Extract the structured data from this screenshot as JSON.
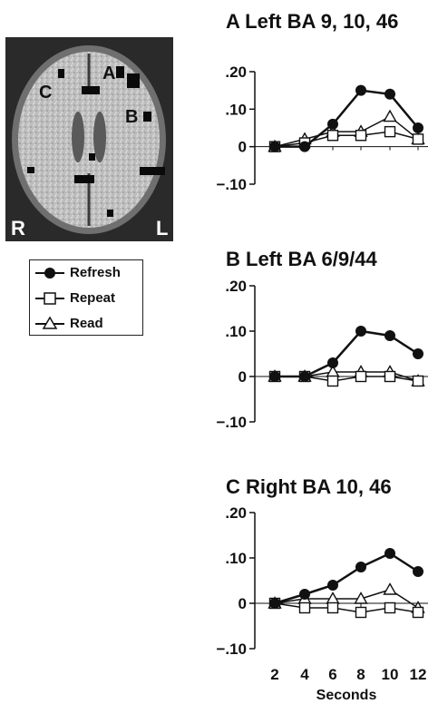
{
  "brain": {
    "letters": [
      "A",
      "B",
      "C"
    ],
    "side_left": "L",
    "side_right": "R",
    "colors": {
      "background": "#2a2a2a",
      "tissue": "#c9c9c9",
      "activation": "#0a0a0a"
    }
  },
  "legend": {
    "items": [
      {
        "label": "Refresh",
        "marker": "filled-circle"
      },
      {
        "label": "Repeat",
        "marker": "open-square"
      },
      {
        "label": "Read",
        "marker": "open-triangle"
      }
    ]
  },
  "chart_data": [
    {
      "type": "line",
      "title": "A  Left BA 9, 10, 46",
      "x": [
        2,
        4,
        6,
        8,
        10,
        12
      ],
      "ylim": [
        -0.1,
        0.2
      ],
      "yticks": [
        ".20",
        ".10",
        "0",
        "−.10"
      ],
      "series": [
        {
          "name": "Refresh",
          "marker": "filled-circle",
          "values": [
            0,
            0,
            0.06,
            0.15,
            0.14,
            0.05
          ]
        },
        {
          "name": "Repeat",
          "marker": "open-square",
          "values": [
            0,
            0.01,
            0.03,
            0.03,
            0.04,
            0.02
          ]
        },
        {
          "name": "Read",
          "marker": "open-triangle",
          "values": [
            0,
            0.02,
            0.04,
            0.04,
            0.08,
            0.02
          ]
        }
      ]
    },
    {
      "type": "line",
      "title": "B  Left BA 6/9/44",
      "x": [
        2,
        4,
        6,
        8,
        10,
        12
      ],
      "ylim": [
        -0.1,
        0.2
      ],
      "yticks": [
        ".20",
        ".10",
        "0",
        "−.10"
      ],
      "series": [
        {
          "name": "Refresh",
          "marker": "filled-circle",
          "values": [
            0,
            0,
            0.03,
            0.1,
            0.09,
            0.05
          ]
        },
        {
          "name": "Repeat",
          "marker": "open-square",
          "values": [
            0,
            0,
            -0.01,
            0,
            0,
            -0.01
          ]
        },
        {
          "name": "Read",
          "marker": "open-triangle",
          "values": [
            0,
            0,
            0.01,
            0.01,
            0.01,
            -0.01
          ]
        }
      ]
    },
    {
      "type": "line",
      "title": "C  Right BA 10, 46",
      "x": [
        2,
        4,
        6,
        8,
        10,
        12
      ],
      "xticks": [
        "2",
        "4",
        "6",
        "8",
        "10",
        "12"
      ],
      "xlabel": "Seconds",
      "ylim": [
        -0.1,
        0.2
      ],
      "yticks": [
        ".20",
        ".10",
        "0",
        "−.10"
      ],
      "series": [
        {
          "name": "Refresh",
          "marker": "filled-circle",
          "values": [
            0,
            0.02,
            0.04,
            0.08,
            0.11,
            0.07
          ]
        },
        {
          "name": "Repeat",
          "marker": "open-square",
          "values": [
            0,
            -0.01,
            -0.01,
            -0.02,
            -0.01,
            -0.02
          ]
        },
        {
          "name": "Read",
          "marker": "open-triangle",
          "values": [
            0,
            0.01,
            0.01,
            0.01,
            0.03,
            -0.01
          ]
        }
      ]
    }
  ]
}
